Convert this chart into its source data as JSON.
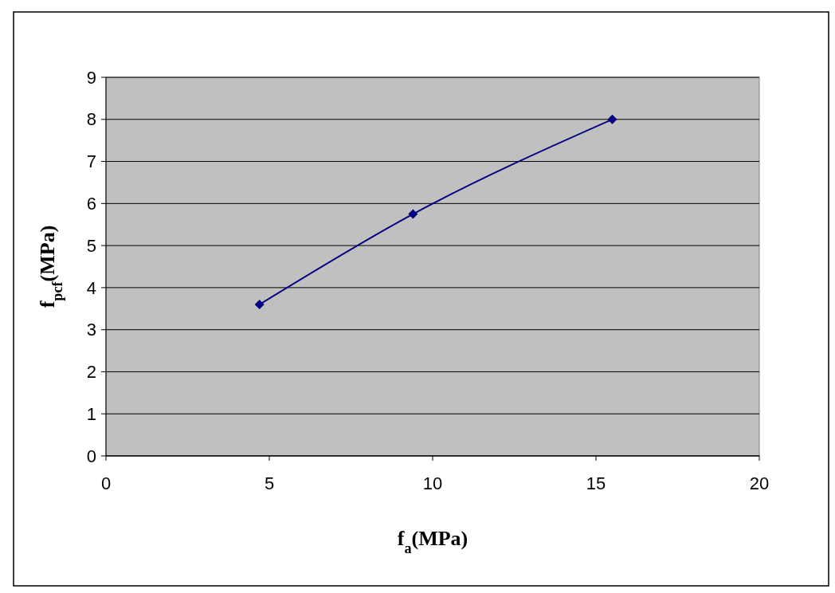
{
  "chart_data": {
    "type": "line",
    "xlabel": "f$_{a}$(MPa)",
    "ylabel": "f$_{pcf}$(MPa)",
    "x": [
      4.7,
      9.4,
      15.5
    ],
    "series": [
      {
        "color": "#000080",
        "values": [
          3.6,
          5.75,
          8.0
        ]
      }
    ],
    "xlim": [
      0,
      20
    ],
    "xticks": [
      0,
      5,
      10,
      15,
      20
    ],
    "ylim": [
      0,
      9
    ],
    "yticks": [
      0,
      1,
      2,
      3,
      4,
      5,
      6,
      7,
      8,
      9
    ],
    "grid": "y",
    "marker": "diamond",
    "line_style": "solid"
  }
}
